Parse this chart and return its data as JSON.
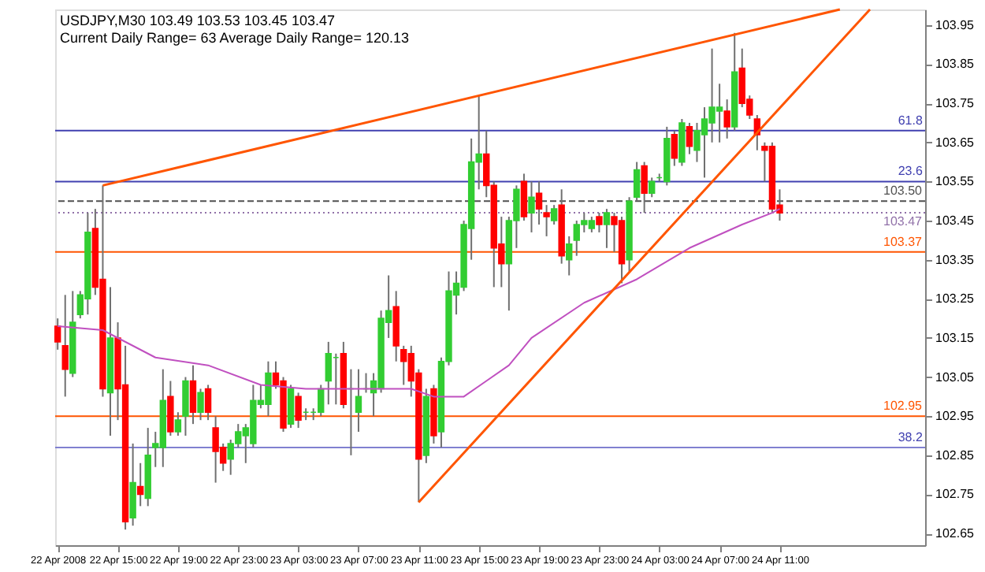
{
  "chart_data": {
    "type": "candlestick",
    "title": "USDJPY,M30 103.49 103.53 103.45 103.47",
    "subtitle": "Current Daily Range= 63 Average Daily Range= 120.13",
    "x": [
      "2008-04-22T11:00",
      "2008-04-22T11:30",
      "2008-04-22T12:00",
      "2008-04-22T12:30",
      "2008-04-22T13:00",
      "2008-04-22T13:30",
      "2008-04-22T14:00",
      "2008-04-22T14:30",
      "2008-04-22T15:00",
      "2008-04-22T15:30",
      "2008-04-22T16:00",
      "2008-04-22T16:30",
      "2008-04-22T17:00",
      "2008-04-22T17:30",
      "2008-04-22T18:00",
      "2008-04-22T18:30",
      "2008-04-22T19:00",
      "2008-04-22T19:30",
      "2008-04-22T20:00",
      "2008-04-22T20:30",
      "2008-04-22T21:00",
      "2008-04-22T21:30",
      "2008-04-22T22:00",
      "2008-04-22T22:30",
      "2008-04-22T23:00",
      "2008-04-22T23:30",
      "2008-04-23T00:00",
      "2008-04-23T00:30",
      "2008-04-23T01:00",
      "2008-04-23T01:30",
      "2008-04-23T02:00",
      "2008-04-23T02:30",
      "2008-04-23T03:00",
      "2008-04-23T03:30",
      "2008-04-23T04:00",
      "2008-04-23T04:30",
      "2008-04-23T05:00",
      "2008-04-23T05:30",
      "2008-04-23T06:00",
      "2008-04-23T06:30",
      "2008-04-23T07:00",
      "2008-04-23T07:30",
      "2008-04-23T08:00",
      "2008-04-23T08:30",
      "2008-04-23T09:00",
      "2008-04-23T09:30",
      "2008-04-23T10:00",
      "2008-04-23T10:30",
      "2008-04-23T11:00",
      "2008-04-23T11:30",
      "2008-04-23T12:00",
      "2008-04-23T12:30",
      "2008-04-23T13:00",
      "2008-04-23T13:30",
      "2008-04-23T14:00",
      "2008-04-23T14:30",
      "2008-04-23T15:00",
      "2008-04-23T15:30",
      "2008-04-23T16:00",
      "2008-04-23T16:30",
      "2008-04-23T17:00",
      "2008-04-23T17:30",
      "2008-04-23T18:00",
      "2008-04-23T18:30",
      "2008-04-23T19:00",
      "2008-04-23T19:30",
      "2008-04-23T20:00",
      "2008-04-23T20:30",
      "2008-04-23T21:00",
      "2008-04-23T21:30",
      "2008-04-23T22:00",
      "2008-04-23T22:30",
      "2008-04-23T23:00",
      "2008-04-23T23:30",
      "2008-04-24T00:00",
      "2008-04-24T00:30",
      "2008-04-24T01:00",
      "2008-04-24T01:30",
      "2008-04-24T02:00",
      "2008-04-24T02:30",
      "2008-04-24T03:00",
      "2008-04-24T03:30",
      "2008-04-24T04:00",
      "2008-04-24T04:30",
      "2008-04-24T05:00",
      "2008-04-24T05:30",
      "2008-04-24T06:00",
      "2008-04-24T06:30",
      "2008-04-24T07:00",
      "2008-04-24T07:30",
      "2008-04-24T08:00",
      "2008-04-24T08:30",
      "2008-04-24T09:00",
      "2008-04-24T09:30",
      "2008-04-24T10:00",
      "2008-04-24T10:30",
      "2008-04-24T11:00"
    ],
    "ohlc": [
      [
        103.18,
        103.2,
        103.12,
        103.14
      ],
      [
        103.13,
        103.26,
        103.0,
        103.07
      ],
      [
        103.06,
        103.27,
        103.05,
        103.19
      ],
      [
        103.21,
        103.27,
        103.2,
        103.26
      ],
      [
        103.25,
        103.47,
        103.21,
        103.42
      ],
      [
        103.43,
        103.48,
        103.26,
        103.28
      ],
      [
        103.3,
        103.54,
        103.0,
        103.02
      ],
      [
        103.01,
        103.28,
        102.9,
        103.15
      ],
      [
        103.15,
        103.19,
        102.94,
        103.02
      ],
      [
        103.03,
        103.13,
        102.66,
        102.68
      ],
      [
        102.69,
        102.88,
        102.67,
        102.78
      ],
      [
        102.77,
        102.83,
        102.72,
        102.75
      ],
      [
        102.74,
        102.92,
        102.72,
        102.85
      ],
      [
        102.87,
        102.91,
        102.82,
        102.88
      ],
      [
        102.87,
        103.07,
        102.82,
        102.99
      ],
      [
        103.0,
        103.04,
        102.9,
        102.91
      ],
      [
        102.91,
        102.96,
        102.9,
        102.94
      ],
      [
        102.95,
        103.05,
        102.9,
        103.04
      ],
      [
        103.04,
        103.08,
        102.93,
        102.96
      ],
      [
        102.96,
        103.02,
        102.94,
        103.01
      ],
      [
        103.02,
        103.03,
        102.94,
        102.96
      ],
      [
        102.92,
        102.95,
        102.78,
        102.86
      ],
      [
        102.87,
        102.88,
        102.81,
        102.83
      ],
      [
        102.84,
        102.89,
        102.8,
        102.88
      ],
      [
        102.88,
        102.93,
        102.87,
        102.91
      ],
      [
        102.9,
        102.93,
        102.83,
        102.92
      ],
      [
        102.88,
        103.03,
        102.87,
        102.99
      ],
      [
        102.98,
        103.03,
        102.97,
        102.99
      ],
      [
        102.98,
        103.09,
        102.95,
        103.06
      ],
      [
        103.06,
        103.09,
        103.02,
        103.03
      ],
      [
        103.04,
        103.05,
        102.91,
        102.92
      ],
      [
        102.93,
        103.03,
        102.92,
        103.02
      ],
      [
        103.0,
        103.01,
        102.92,
        102.94
      ],
      [
        102.96,
        102.97,
        102.94,
        102.96
      ],
      [
        102.96,
        102.97,
        102.94,
        102.96
      ],
      [
        102.96,
        103.03,
        102.95,
        103.02
      ],
      [
        103.04,
        103.14,
        102.98,
        103.11
      ],
      [
        103.1,
        103.11,
        102.98,
        103.1
      ],
      [
        103.11,
        103.14,
        102.97,
        102.98
      ],
      [
        103.02,
        103.07,
        102.85,
        103.02
      ],
      [
        102.96,
        103.07,
        102.91,
        103.0
      ],
      [
        103.02,
        103.06,
        103.01,
        103.02
      ],
      [
        103.01,
        103.06,
        102.95,
        103.04
      ],
      [
        103.02,
        103.22,
        103.01,
        103.2
      ],
      [
        103.19,
        103.31,
        103.15,
        103.22
      ],
      [
        103.23,
        103.27,
        103.09,
        103.13
      ],
      [
        103.12,
        103.13,
        103.03,
        103.09
      ],
      [
        103.11,
        103.13,
        103.0,
        103.04
      ],
      [
        103.06,
        103.07,
        102.73,
        102.84
      ],
      [
        102.85,
        103.02,
        102.83,
        103.0
      ],
      [
        103.02,
        103.03,
        102.88,
        102.9
      ],
      [
        102.91,
        103.1,
        102.87,
        103.09
      ],
      [
        103.09,
        103.32,
        103.08,
        103.27
      ],
      [
        103.26,
        103.32,
        103.21,
        103.29
      ],
      [
        103.28,
        103.45,
        103.27,
        103.44
      ],
      [
        103.43,
        103.66,
        103.35,
        103.6
      ],
      [
        103.6,
        103.77,
        103.53,
        103.62
      ],
      [
        103.62,
        103.68,
        103.51,
        103.54
      ],
      [
        103.54,
        103.55,
        103.28,
        103.38
      ],
      [
        103.39,
        103.46,
        103.28,
        103.34
      ],
      [
        103.34,
        103.46,
        103.22,
        103.45
      ],
      [
        103.45,
        103.54,
        103.38,
        103.53
      ],
      [
        103.55,
        103.57,
        103.45,
        103.46
      ],
      [
        103.47,
        103.55,
        103.42,
        103.51
      ],
      [
        103.52,
        103.55,
        103.44,
        103.48
      ],
      [
        103.47,
        103.49,
        103.41,
        103.46
      ],
      [
        103.45,
        103.49,
        103.44,
        103.48
      ],
      [
        103.49,
        103.53,
        103.34,
        103.36
      ],
      [
        103.35,
        103.41,
        103.31,
        103.39
      ],
      [
        103.4,
        103.45,
        103.36,
        103.44
      ],
      [
        103.44,
        103.47,
        103.42,
        103.45
      ],
      [
        103.43,
        103.46,
        103.42,
        103.45
      ],
      [
        103.46,
        103.47,
        103.42,
        103.44
      ],
      [
        103.44,
        103.48,
        103.38,
        103.47
      ],
      [
        103.46,
        103.47,
        103.37,
        103.44
      ],
      [
        103.45,
        103.46,
        103.29,
        103.34
      ],
      [
        103.35,
        103.51,
        103.32,
        103.5
      ],
      [
        103.51,
        103.6,
        103.5,
        103.58
      ],
      [
        103.59,
        103.6,
        103.47,
        103.52
      ],
      [
        103.52,
        103.56,
        103.51,
        103.55
      ],
      [
        103.56,
        103.57,
        103.55,
        103.56
      ],
      [
        103.55,
        103.69,
        103.54,
        103.66
      ],
      [
        103.67,
        103.68,
        103.59,
        103.61
      ],
      [
        103.6,
        103.71,
        103.59,
        103.7
      ],
      [
        103.69,
        103.7,
        103.62,
        103.64
      ],
      [
        103.63,
        103.7,
        103.6,
        103.68
      ],
      [
        103.67,
        103.74,
        103.56,
        103.71
      ],
      [
        103.7,
        103.89,
        103.65,
        103.74
      ],
      [
        103.73,
        103.8,
        103.65,
        103.74
      ],
      [
        103.73,
        103.76,
        103.66,
        103.69
      ],
      [
        103.69,
        103.93,
        103.68,
        103.83
      ],
      [
        103.84,
        103.89,
        103.74,
        103.75
      ],
      [
        103.76,
        103.77,
        103.71,
        103.72
      ],
      [
        103.71,
        103.72,
        103.63,
        103.67
      ],
      [
        103.64,
        103.65,
        103.55,
        103.63
      ],
      [
        103.64,
        103.65,
        103.47,
        103.48
      ],
      [
        103.49,
        103.53,
        103.45,
        103.47
      ]
    ],
    "colors": [
      "#ff0000",
      "#ff0000",
      "#32cd32",
      "#32cd32",
      "#32cd32",
      "#ff0000",
      "#ff0000",
      "#32cd32",
      "#ff0000",
      "#ff0000",
      "#32cd32",
      "#ff0000",
      "#32cd32",
      "#32cd32",
      "#32cd32",
      "#ff0000",
      "#32cd32",
      "#32cd32",
      "#ff0000",
      "#32cd32",
      "#ff0000",
      "#ff0000",
      "#ff0000",
      "#32cd32",
      "#32cd32",
      "#32cd32",
      "#32cd32",
      "#32cd32",
      "#32cd32",
      "#ff0000",
      "#ff0000",
      "#32cd32",
      "#ff0000",
      "#32cd32",
      "#32cd32",
      "#32cd32",
      "#32cd32",
      "#32cd32",
      "#ff0000",
      "#32cd32",
      "#32cd32",
      "#32cd32",
      "#32cd32",
      "#32cd32",
      "#32cd32",
      "#ff0000",
      "#ff0000",
      "#ff0000",
      "#ff0000",
      "#32cd32",
      "#ff0000",
      "#32cd32",
      "#32cd32",
      "#32cd32",
      "#32cd32",
      "#32cd32",
      "#32cd32",
      "#ff0000",
      "#ff0000",
      "#ff0000",
      "#32cd32",
      "#32cd32",
      "#ff0000",
      "#32cd32",
      "#ff0000",
      "#ff0000",
      "#32cd32",
      "#ff0000",
      "#32cd32",
      "#32cd32",
      "#32cd32",
      "#32cd32",
      "#ff0000",
      "#32cd32",
      "#ff0000",
      "#ff0000",
      "#32cd32",
      "#32cd32",
      "#ff0000",
      "#32cd32",
      "#32cd32",
      "#32cd32",
      "#ff0000",
      "#32cd32",
      "#ff0000",
      "#32cd32",
      "#32cd32",
      "#32cd32",
      "#32cd32",
      "#ff0000",
      "#32cd32",
      "#ff0000",
      "#ff0000",
      "#ff0000",
      "#ff0000",
      "#ff0000",
      "#ff0000"
    ],
    "series": [
      {
        "type": "line",
        "color": "#c050c0",
        "x": [
          "2008-04-22T11:00",
          "2008-04-22T14:00",
          "2008-04-22T17:30",
          "2008-04-22T21:00",
          "2008-04-23T00:30",
          "2008-04-23T03:30",
          "2008-04-23T07:00",
          "2008-04-23T10:30",
          "2008-04-23T12:00",
          "2008-04-23T14:00",
          "2008-04-23T15:30",
          "2008-04-23T17:00",
          "2008-04-23T18:30",
          "2008-04-23T22:00",
          "2008-04-24T01:30",
          "2008-04-24T05:00",
          "2008-04-24T08:30",
          "2008-04-24T10:30",
          "2008-04-24T11:00"
        ],
        "values": [
          103.18,
          103.17,
          103.1,
          103.08,
          103.03,
          103.02,
          103.02,
          103.02,
          103.0,
          103.0,
          103.04,
          103.08,
          103.15,
          103.24,
          103.3,
          103.38,
          103.44,
          103.47,
          103.48
        ]
      },
      {
        "type": "line",
        "color": "#ff5500",
        "x": [
          "2008-04-22T14:00",
          "2008-04-24T15:00"
        ],
        "values": [
          103.54,
          103.99
        ]
      },
      {
        "type": "line",
        "color": "#ff5500",
        "x": [
          "2008-04-23T11:00",
          "2008-04-24T17:00"
        ],
        "values": [
          102.73,
          103.99
        ]
      }
    ],
    "ref_lines": [
      {
        "axis": "y",
        "value": 103.68,
        "color": "#4040b0",
        "line_style": "solid"
      },
      {
        "axis": "y",
        "value": 103.55,
        "color": "#4040b0",
        "line_style": "solid"
      },
      {
        "axis": "y",
        "value": 103.5,
        "label": "103.50",
        "color": "#505050",
        "line_style": "dashed"
      },
      {
        "axis": "y",
        "value": 103.47,
        "label": "103.47",
        "color": "#9070a8",
        "line_style": "dotted"
      },
      {
        "axis": "y",
        "value": 103.37,
        "label": "103.37",
        "color": "#ff5500",
        "line_style": "solid"
      },
      {
        "axis": "y",
        "value": 102.95,
        "label": "102.95",
        "color": "#ff5500",
        "line_style": "solid"
      },
      {
        "axis": "y",
        "value": 102.87,
        "color": "#8080d0",
        "line_style": "solid"
      }
    ],
    "annotations": [
      {
        "text": "61.8",
        "x": "2008-04-24T20:30",
        "y": 103.68
      },
      {
        "text": "23.6",
        "x": "2008-04-24T20:30",
        "y": 103.55
      },
      {
        "text": "38.2",
        "x": "2008-04-24T20:30",
        "y": 102.87
      }
    ],
    "xlim": [
      "2008-04-22T10:50",
      "2008-04-24T20:40"
    ],
    "xticks": [
      {
        "value": "2008-04-22T11:00",
        "label": "22 Apr 2008"
      },
      {
        "value": "2008-04-22T15:00",
        "label": "22 Apr 15:00"
      },
      {
        "value": "2008-04-22T19:00",
        "label": "22 Apr 19:00"
      },
      {
        "value": "2008-04-22T23:00",
        "label": "22 Apr 23:00"
      },
      {
        "value": "2008-04-23T03:00",
        "label": "23 Apr 03:00"
      },
      {
        "value": "2008-04-23T07:00",
        "label": "23 Apr 07:00"
      },
      {
        "value": "2008-04-23T11:00",
        "label": "23 Apr 11:00"
      },
      {
        "value": "2008-04-23T15:00",
        "label": "23 Apr 15:00"
      },
      {
        "value": "2008-04-23T19:00",
        "label": "23 Apr 19:00"
      },
      {
        "value": "2008-04-23T23:00",
        "label": "23 Apr 23:00"
      },
      {
        "value": "2008-04-24T03:00",
        "label": "24 Apr 03:00"
      },
      {
        "value": "2008-04-24T07:00",
        "label": "24 Apr 07:00"
      },
      {
        "value": "2008-04-24T11:00",
        "label": "24 Apr 11:00"
      }
    ],
    "ylim": [
      102.62,
      103.99
    ],
    "yticks": [
      102.65,
      102.75,
      102.85,
      102.95,
      103.05,
      103.15,
      103.25,
      103.35,
      103.45,
      103.55,
      103.65,
      103.75,
      103.85,
      103.95
    ],
    "grid": false
  }
}
